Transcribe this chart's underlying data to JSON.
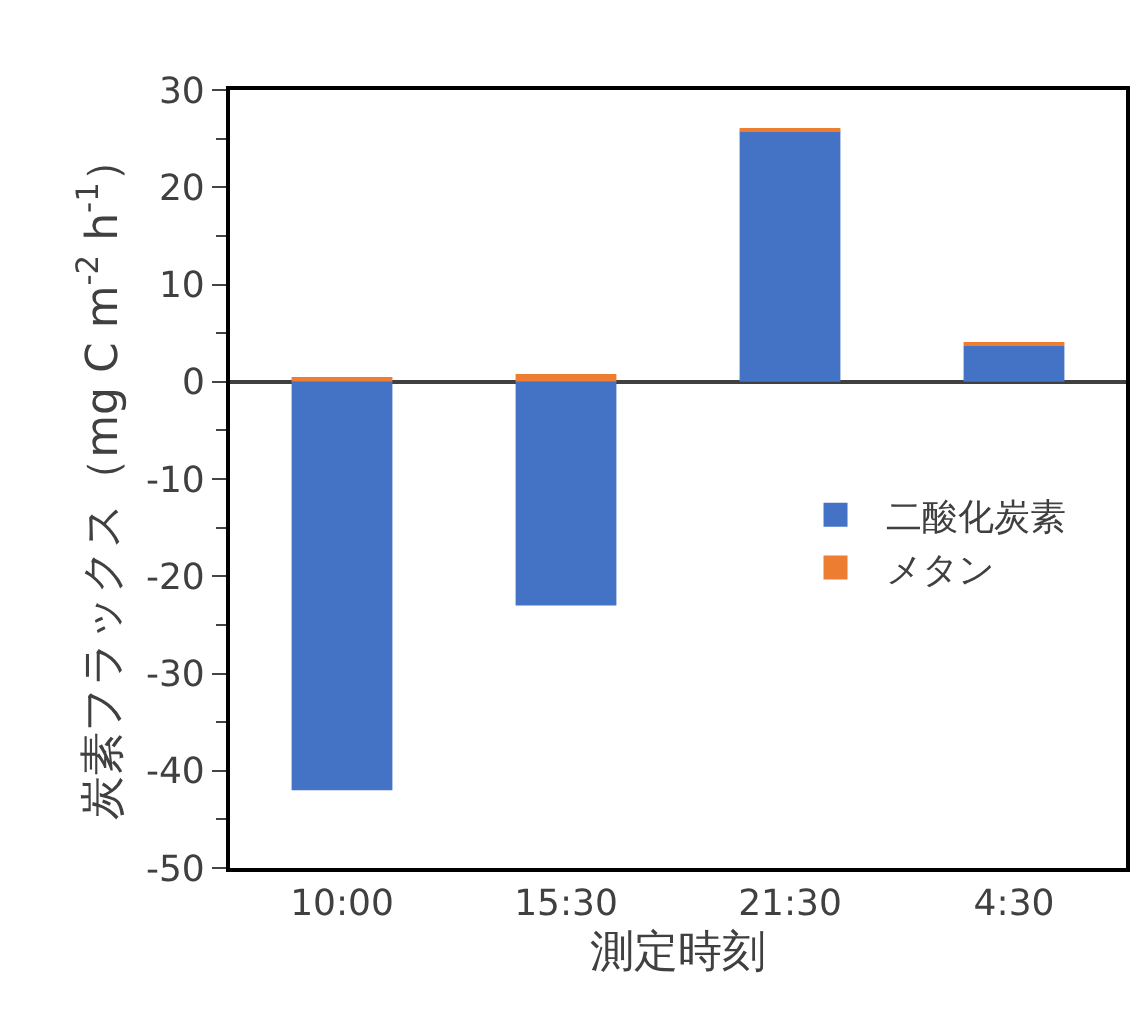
{
  "chart_data": {
    "type": "bar",
    "stacked": true,
    "xlabel": "測定時刻",
    "ylabel": "炭素フラックス（mg C m$^{-2}$ h$^{-1}$）",
    "categories": [
      "10:00",
      "15:30",
      "21:30",
      "4:30"
    ],
    "series": [
      {
        "name": "二酸化炭素",
        "color": "#4472c4",
        "values": [
          -42,
          -23,
          25.8,
          3.7
        ]
      },
      {
        "name": "メタン",
        "color": "#ed7d31",
        "values": [
          0.5,
          0.8,
          0.3,
          0.3
        ]
      }
    ],
    "ylim": [
      -50,
      30
    ],
    "yticks": [
      -50,
      -40,
      -30,
      -20,
      -10,
      0,
      10,
      20,
      30
    ],
    "legend": "right"
  }
}
